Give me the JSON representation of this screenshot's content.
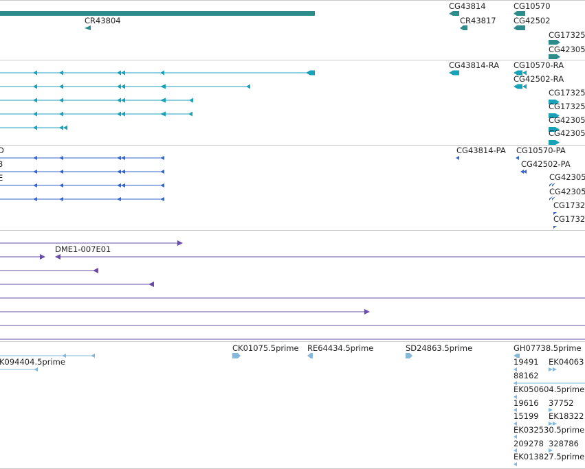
{
  "colors": {
    "gene": "#2e8b8b",
    "transcript": "#17a2b8",
    "protein": "#3366cc",
    "clone": "#6a4ca8",
    "est": "#86b8dc"
  },
  "genes": {
    "labels": [
      "CR43804",
      "CG43814",
      "CG10570",
      "CR43817",
      "CG42502",
      "CG17325",
      "CG42305"
    ]
  },
  "transcripts": {
    "labels": [
      "CG43814-RA",
      "CG10570-RA",
      "CG42502-RA",
      "CG17325",
      "CG17325",
      "CG42305",
      "CG42305"
    ]
  },
  "proteins": {
    "labels": [
      "CG43814-PA",
      "CG10570-PA",
      "CG42502-PA",
      "CG42305",
      "CG42305",
      "CG1732",
      "CG1732"
    ],
    "edge_chars": [
      "D",
      "3",
      "E"
    ]
  },
  "clones": {
    "labels": [
      "DME1-007E01"
    ]
  },
  "ests": {
    "labels": [
      "K094404.5prime",
      "CK01075.5prime",
      "RE64434.5prime",
      "SD24863.5prime",
      "GH07738.5prime",
      "19491",
      "EK04063",
      "88162",
      "EK050604.5prime",
      "19616",
      "37752",
      "15199",
      "EK18322",
      "EK032530.5prime",
      "209278",
      "328786",
      "EK013827.5prime"
    ]
  }
}
